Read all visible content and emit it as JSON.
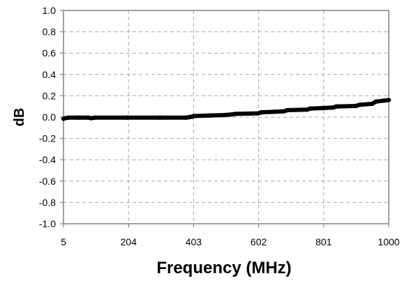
{
  "chart_data": {
    "type": "line",
    "title": "",
    "xlabel": "Frequency (MHz)",
    "ylabel": "dB",
    "x_ticks": [
      "5",
      "204",
      "403",
      "602",
      "801",
      "1000"
    ],
    "y_ticks": [
      "1.0",
      "0.8",
      "0.6",
      "0.4",
      "0.2",
      "0.0",
      "-0.2",
      "-0.4",
      "-0.6",
      "-0.8",
      "-1.0"
    ],
    "xlim": [
      5,
      1000
    ],
    "ylim": [
      -1.0,
      1.0
    ],
    "grid": true,
    "legend": "none",
    "colors": {
      "line": "#000000",
      "grid": "#a6a6a6",
      "axis": "#808080"
    },
    "series": [
      {
        "x": [
          5,
          10,
          20,
          50,
          80,
          90,
          100,
          200,
          300,
          380,
          390,
          400,
          403,
          450,
          500,
          520,
          530,
          600,
          610,
          650,
          680,
          690,
          750,
          760,
          800,
          830,
          840,
          900,
          910,
          950,
          960,
          1000
        ],
        "values": [
          -0.015,
          -0.01,
          -0.005,
          -0.005,
          -0.005,
          -0.01,
          -0.005,
          -0.005,
          -0.005,
          -0.005,
          0.0,
          0.005,
          0.01,
          0.015,
          0.02,
          0.025,
          0.03,
          0.035,
          0.045,
          0.05,
          0.055,
          0.065,
          0.07,
          0.08,
          0.085,
          0.09,
          0.1,
          0.105,
          0.115,
          0.125,
          0.145,
          0.16
        ]
      }
    ]
  }
}
